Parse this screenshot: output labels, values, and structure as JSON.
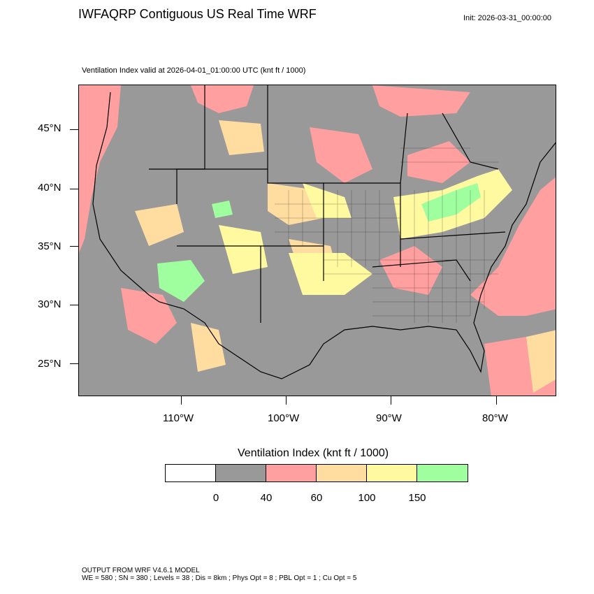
{
  "title": "IWFAQRP Contiguous US Real Time WRF",
  "init": "Init: 2026-03-31_00:00:00",
  "subtitle": "Ventilation Index valid at 2026-04-01_01:00:00 UTC   (knt ft / 1000)",
  "map": {
    "lat_labels": [
      "45°N",
      "40°N",
      "35°N",
      "30°N",
      "25°N"
    ],
    "lon_labels": [
      "110°W",
      "100°W",
      "90°W",
      "80°W"
    ],
    "colors": {
      "0-40": "#999999",
      "40-60": "#ff9f9f",
      "60-100": "#ffdc9f",
      "100-150": "#fff99f",
      "150+": "#9fff9f"
    }
  },
  "colorbar": {
    "title": "Ventilation Index  (knt ft / 1000)",
    "boxes": [
      "#ffffff",
      "#999999",
      "#ff9f9f",
      "#ffdc9f",
      "#fff99f",
      "#9fff9f"
    ],
    "labels": [
      "0",
      "40",
      "60",
      "100",
      "150"
    ]
  },
  "footer": {
    "line1": "OUTPUT FROM WRF V4.6.1 MODEL",
    "line2": "WE = 580 ; SN = 380 ; Levels = 38 ; Dis = 8km ; Phys Opt = 8 ; PBL Opt = 1 ; Cu Opt = 5"
  }
}
